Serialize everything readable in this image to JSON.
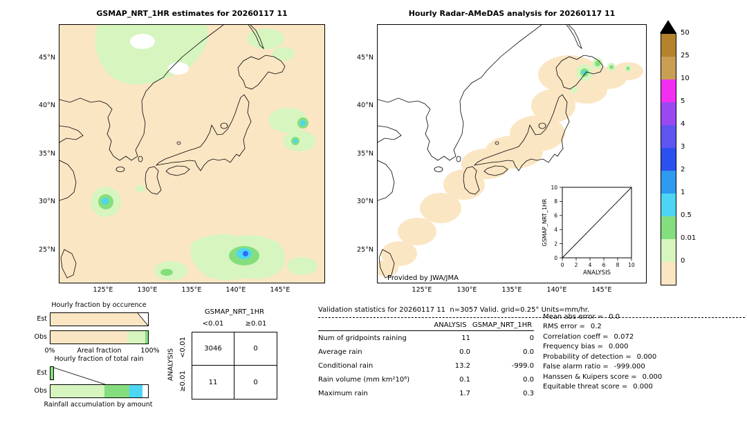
{
  "left_map": {
    "title": "GSMAP_NRT_1HR estimates for 20260117 11",
    "lat_ticks": [
      "45°N",
      "40°N",
      "35°N",
      "30°N",
      "25°N"
    ],
    "lon_ticks": [
      "125°E",
      "130°E",
      "135°E",
      "140°E",
      "145°E"
    ]
  },
  "right_map": {
    "title": "Hourly Radar-AMeDAS analysis for 20260117 11",
    "lat_ticks": [
      "45°N",
      "40°N",
      "35°N",
      "30°N",
      "25°N"
    ],
    "lon_ticks": [
      "125°E",
      "130°E",
      "135°E",
      "140°E",
      "145°E"
    ],
    "credit": "Provided by JWA/JMA",
    "inset": {
      "xlabel": "ANALYSIS",
      "ylabel": "GSMAP_NRT_1HR",
      "x_ticks": [
        "0",
        "2",
        "4",
        "6",
        "8",
        "10"
      ],
      "y_ticks": [
        "10",
        "8",
        "6",
        "4",
        "2",
        "0"
      ]
    }
  },
  "colorbar": {
    "tick_labels": [
      "50",
      "25",
      "10",
      "5",
      "4",
      "3",
      "2",
      "1",
      "0.5",
      "0.01",
      "0"
    ],
    "segment_colors": [
      "#b3832c",
      "#c99f54",
      "#f22ef2",
      "#9a49f2",
      "#5e55f2",
      "#2b50ed",
      "#2e9af0",
      "#4cd6f4",
      "#85de7e",
      "#d6f5bf",
      "#fbe6c4"
    ],
    "overflow_color": "#000000"
  },
  "occurrence_chart": {
    "title": "Hourly fraction by occurence",
    "row_labels": [
      "Est",
      "Obs"
    ],
    "x_left": "0%",
    "x_label": "Areal fraction",
    "x_right": "100%",
    "est_segments": [
      {
        "color": "#fbe6c4",
        "pct": 100
      }
    ],
    "obs_segments": [
      {
        "color": "#fbe6c4",
        "pct": 79
      },
      {
        "color": "#d6f5bf",
        "pct": 18
      },
      {
        "color": "#85de7e",
        "pct": 3
      }
    ]
  },
  "total_rain_chart": {
    "title": "Hourly fraction of total rain",
    "row_labels": [
      "Est",
      "Obs"
    ],
    "x_label": "Rainfall accumulation by amount",
    "est_segments": [
      {
        "color": "#85de7e",
        "pct": 4
      }
    ],
    "obs_segments": [
      {
        "color": "#d6f5bf",
        "pct": 55
      },
      {
        "color": "#85de7e",
        "pct": 26
      },
      {
        "color": "#4cd6f4",
        "pct": 13
      }
    ]
  },
  "contingency": {
    "col_group": "GSMAP_NRT_1HR",
    "row_group": "ANALYSIS",
    "col_labels": [
      "<0.01",
      "≥0.01"
    ],
    "row_labels": [
      "<0.01",
      "≥0.01"
    ],
    "values": [
      [
        "3046",
        "0"
      ],
      [
        "11",
        "0"
      ]
    ]
  },
  "stats": {
    "title": "Validation statistics for 20260117 11  n=3057 Valid. grid=0.25° Units=mm/hr.",
    "table": {
      "col_headers": [
        "ANALYSIS",
        "GSMAP_NRT_1HR"
      ],
      "rows": [
        {
          "label": "Num of gridpoints raining",
          "analysis": "11",
          "gsmap": "0"
        },
        {
          "label": "Average rain",
          "analysis": "0.0",
          "gsmap": "0.0"
        },
        {
          "label": "Conditional rain",
          "analysis": "13.2",
          "gsmap": "-999.0"
        },
        {
          "label": "Rain volume (mm km²10⁶)",
          "analysis": "0.1",
          "gsmap": "0.0"
        },
        {
          "label": "Maximum rain",
          "analysis": "1.7",
          "gsmap": "0.3"
        }
      ]
    },
    "metrics": [
      {
        "label": "Mean abs error =",
        "value": "0.0"
      },
      {
        "label": "RMS error =",
        "value": "0.2"
      },
      {
        "label": "Correlation coeff =",
        "value": "0.072"
      },
      {
        "label": "Frequency bias =",
        "value": "0.000"
      },
      {
        "label": "Probability of detection =",
        "value": "0.000"
      },
      {
        "label": "False alarm ratio =",
        "value": "-999.000"
      },
      {
        "label": "Hanssen & Kuipers score =",
        "value": "0.000"
      },
      {
        "label": "Equitable threat score =",
        "value": "0.000"
      }
    ]
  },
  "chart_data": [
    {
      "type": "heatmap",
      "name": "gsmap-estimates-map",
      "title": "GSMAP_NRT_1HR estimates for 20260117 11",
      "x_ticks": [
        "125°E",
        "130°E",
        "135°E",
        "140°E",
        "145°E"
      ],
      "y_ticks": [
        "45°N",
        "40°N",
        "35°N",
        "30°N",
        "25°N"
      ],
      "colorbar_levels": [
        0,
        0.01,
        0.5,
        1,
        2,
        3,
        4,
        5,
        10,
        25,
        50
      ],
      "units": "mm/hr"
    },
    {
      "type": "heatmap",
      "name": "radar-amedas-analysis-map",
      "title": "Hourly Radar-AMeDAS analysis for 20260117 11",
      "x_ticks": [
        "125°E",
        "130°E",
        "135°E",
        "140°E",
        "145°E"
      ],
      "y_ticks": [
        "45°N",
        "40°N",
        "35°N",
        "30°N",
        "25°N"
      ],
      "annotation": "Provided by JWA/JMA",
      "inset": {
        "type": "scatter",
        "xlabel": "ANALYSIS",
        "ylabel": "GSMAP_NRT_1HR",
        "xlim": [
          0,
          10
        ],
        "ylim": [
          0,
          10
        ],
        "diagonal_line": true
      },
      "units": "mm/hr"
    },
    {
      "type": "bar",
      "name": "hourly-fraction-by-occurence",
      "orientation": "horizontal",
      "categories": [
        "Est",
        "Obs"
      ],
      "xlabel": "Areal fraction",
      "xlim": [
        0,
        100
      ],
      "series": [
        {
          "name": "fraction_below_0.01",
          "values": [
            100,
            79
          ]
        },
        {
          "name": "fraction_0.01_0.5",
          "values": [
            0,
            18
          ]
        },
        {
          "name": "fraction_above_0.5",
          "values": [
            0,
            3
          ]
        }
      ]
    },
    {
      "type": "bar",
      "name": "hourly-fraction-of-total-rain",
      "orientation": "horizontal",
      "categories": [
        "Est",
        "Obs"
      ],
      "xlabel": "Rainfall accumulation by amount",
      "series": [
        {
          "name": "light_rain_fraction",
          "values": [
            4,
            55
          ]
        },
        {
          "name": "moderate_rain_fraction",
          "values": [
            0,
            26
          ]
        },
        {
          "name": "heavy_rain_fraction",
          "values": [
            0,
            13
          ]
        }
      ]
    },
    {
      "type": "table",
      "name": "contingency-table",
      "col_group": "GSMAP_NRT_1HR",
      "row_group": "ANALYSIS",
      "col_labels": [
        "<0.01",
        "≥0.01"
      ],
      "row_labels": [
        "<0.01",
        "≥0.01"
      ],
      "values": [
        [
          3046,
          0
        ],
        [
          11,
          0
        ]
      ]
    },
    {
      "type": "table",
      "name": "validation-statistics",
      "title": "Validation statistics for 20260117 11  n=3057 Valid. grid=0.25° Units=mm/hr.",
      "columns": [
        "ANALYSIS",
        "GSMAP_NRT_1HR"
      ],
      "rows": [
        [
          "Num of gridpoints raining",
          11,
          0
        ],
        [
          "Average rain",
          0.0,
          0.0
        ],
        [
          "Conditional rain",
          13.2,
          -999.0
        ],
        [
          "Rain volume (mm km²10⁶)",
          0.1,
          0.0
        ],
        [
          "Maximum rain",
          1.7,
          0.3
        ]
      ],
      "metrics": {
        "Mean abs error": 0.0,
        "RMS error": 0.2,
        "Correlation coeff": 0.072,
        "Frequency bias": 0.0,
        "Probability of detection": 0.0,
        "False alarm ratio": -999.0,
        "Hanssen & Kuipers score": 0.0,
        "Equitable threat score": 0.0
      }
    }
  ]
}
